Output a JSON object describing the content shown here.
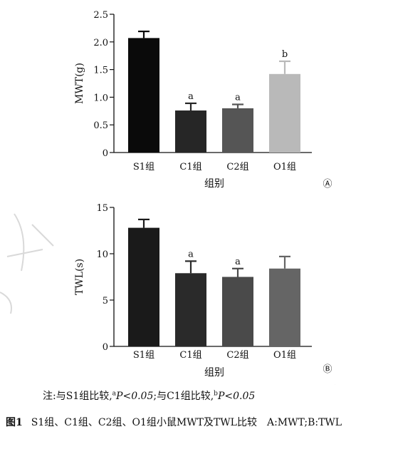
{
  "chart_data": [
    {
      "type": "bar",
      "panel_label": "Ⓐ",
      "ylabel": "MWT(g)",
      "xlabel": "组别",
      "categories": [
        "S1组",
        "C1组",
        "C2组",
        "O1组"
      ],
      "values": [
        2.07,
        0.76,
        0.8,
        1.42
      ],
      "errors": [
        0.12,
        0.13,
        0.07,
        0.23
      ],
      "significance": [
        "",
        "a",
        "a",
        "b"
      ],
      "colors": [
        "#0a0a0a",
        "#262626",
        "#555555",
        "#b9b9b9"
      ],
      "ylim": [
        0,
        2.5
      ],
      "yticks": [
        "0",
        "0.5",
        "1.0",
        "1.5",
        "2.0",
        "2.5"
      ]
    },
    {
      "type": "bar",
      "panel_label": "Ⓑ",
      "ylabel": "TWL(s)",
      "xlabel": "组别",
      "categories": [
        "S1组",
        "C1组",
        "C2组",
        "O1组"
      ],
      "values": [
        12.8,
        7.9,
        7.5,
        8.4
      ],
      "errors": [
        0.9,
        1.3,
        0.9,
        1.3
      ],
      "significance": [
        "",
        "a",
        "a",
        ""
      ],
      "colors": [
        "#1a1a1a",
        "#2a2a2a",
        "#4a4a4a",
        "#656565"
      ],
      "ylim": [
        0,
        15
      ],
      "yticks": [
        "0",
        "5",
        "10",
        "15"
      ]
    }
  ],
  "note": {
    "prefix": "注:与S1组比较,",
    "sup_a": "a",
    "p_a": "P<0.05",
    "middle": ";与C1组比较,",
    "sup_b": "b",
    "p_b": "P<0.05"
  },
  "caption": {
    "label": "图1",
    "text": "S1组、C1组、C2组、O1组小鼠MWT及TWL比较　A:MWT;B:TWL"
  }
}
